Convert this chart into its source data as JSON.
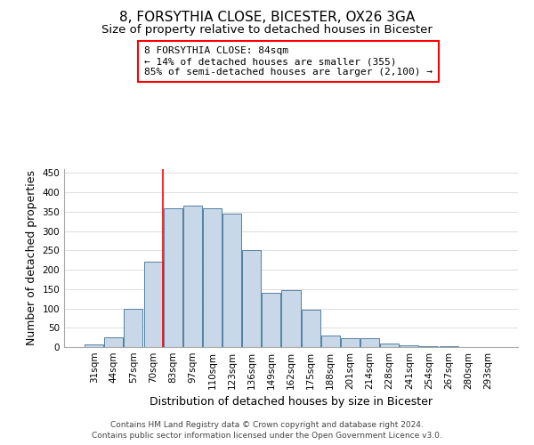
{
  "title": "8, FORSYTHIA CLOSE, BICESTER, OX26 3GA",
  "subtitle": "Size of property relative to detached houses in Bicester",
  "xlabel": "Distribution of detached houses by size in Bicester",
  "ylabel": "Number of detached properties",
  "bar_labels": [
    "31sqm",
    "44sqm",
    "57sqm",
    "70sqm",
    "83sqm",
    "97sqm",
    "110sqm",
    "123sqm",
    "136sqm",
    "149sqm",
    "162sqm",
    "175sqm",
    "188sqm",
    "201sqm",
    "214sqm",
    "228sqm",
    "241sqm",
    "254sqm",
    "267sqm",
    "280sqm",
    "293sqm"
  ],
  "bar_values": [
    8,
    25,
    98,
    220,
    358,
    365,
    358,
    345,
    250,
    140,
    148,
    97,
    30,
    22,
    22,
    10,
    4,
    3,
    2,
    1,
    1
  ],
  "bar_color": "#c8d8e8",
  "bar_edge_color": "#5580a0",
  "annotation_line1": "8 FORSYTHIA CLOSE: 84sqm",
  "annotation_line2": "← 14% of detached houses are smaller (355)",
  "annotation_line3": "85% of semi-detached houses are larger (2,100) →",
  "property_bar_index": 4,
  "ylim": [
    0,
    460
  ],
  "yticks": [
    0,
    50,
    100,
    150,
    200,
    250,
    300,
    350,
    400,
    450
  ],
  "footer_line1": "Contains HM Land Registry data © Crown copyright and database right 2024.",
  "footer_line2": "Contains public sector information licensed under the Open Government Licence v3.0.",
  "background_color": "#ffffff",
  "grid_color": "#dddddd",
  "title_fontsize": 11,
  "subtitle_fontsize": 9.5,
  "axis_label_fontsize": 9,
  "tick_fontsize": 7.5,
  "annotation_fontsize": 8,
  "footer_fontsize": 6.5
}
